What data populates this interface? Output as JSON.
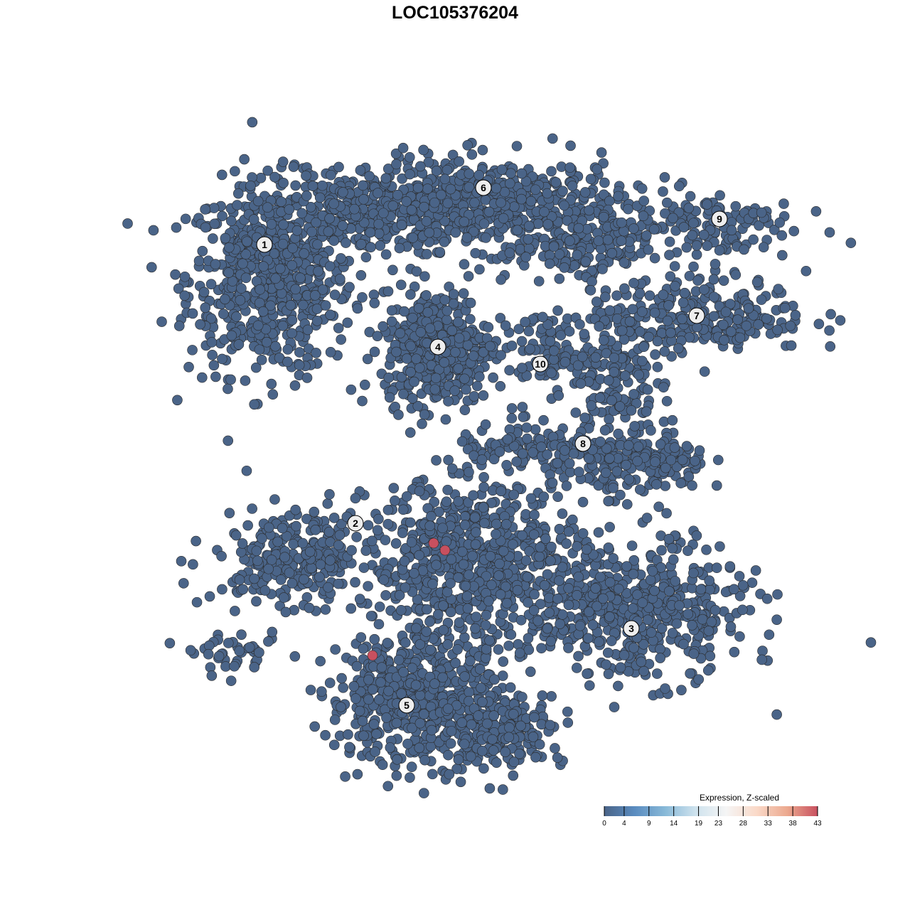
{
  "chart_data": {
    "type": "scatter",
    "title": "LOC105376204",
    "xlabel": "",
    "ylabel": "",
    "axes_visible": false,
    "grid": false,
    "point_color_low": "#4a6488",
    "point_stroke": "#2b2b2b",
    "clusters": [
      {
        "label": "1",
        "label_pos": [
          -6.7,
          7.4
        ],
        "blobs": [
          [
            -6.5,
            6.2,
            1.8,
            2.1,
            650
          ],
          [
            -3.0,
            8.6,
            2.0,
            1.0,
            300
          ]
        ]
      },
      {
        "label": "6",
        "label_pos": [
          1.0,
          9.4
        ],
        "blobs": [
          [
            1.5,
            8.8,
            2.8,
            1.0,
            480
          ],
          [
            4.6,
            7.3,
            1.4,
            0.8,
            150
          ]
        ]
      },
      {
        "label": "4",
        "label_pos": [
          -0.6,
          3.8
        ],
        "blobs": [
          [
            -0.6,
            3.8,
            1.15,
            1.25,
            450
          ]
        ]
      },
      {
        "label": "10",
        "label_pos": [
          3.0,
          3.2
        ],
        "blobs": [
          [
            3.2,
            3.6,
            1.0,
            0.9,
            90
          ]
        ]
      },
      {
        "label": "9",
        "label_pos": [
          9.3,
          8.3
        ],
        "blobs": [
          [
            8.9,
            8.1,
            1.9,
            0.8,
            130
          ]
        ]
      },
      {
        "label": "7",
        "label_pos": [
          8.5,
          4.9
        ],
        "blobs": [
          [
            8.6,
            4.9,
            2.4,
            0.8,
            260
          ],
          [
            5.6,
            2.6,
            0.9,
            1.5,
            150
          ]
        ]
      },
      {
        "label": "8",
        "label_pos": [
          4.5,
          0.4
        ],
        "blobs": [
          [
            6.8,
            -0.3,
            1.3,
            0.7,
            160
          ],
          [
            3.0,
            0.1,
            1.9,
            0.6,
            120
          ]
        ]
      },
      {
        "label": "2",
        "label_pos": [
          -3.5,
          -2.4
        ],
        "blobs": [
          [
            -5.6,
            -3.6,
            1.8,
            1.0,
            260
          ]
        ]
      },
      {
        "label": "3",
        "label_pos": [
          6.2,
          -6.1
        ],
        "blobs": [
          [
            6.4,
            -5.5,
            2.4,
            1.5,
            500
          ]
        ]
      },
      {
        "label": "5",
        "label_pos": [
          -1.7,
          -8.8
        ],
        "blobs": [
          [
            -1.4,
            -8.6,
            1.9,
            1.4,
            550
          ],
          [
            1.6,
            -9.6,
            1.4,
            0.8,
            200
          ],
          [
            0.8,
            -3.8,
            2.4,
            1.9,
            700
          ],
          [
            -7.6,
            -7.0,
            1.0,
            0.4,
            40
          ]
        ]
      }
    ],
    "highlighted_points": [
      {
        "x": -0.75,
        "y": -3.1,
        "value": 43
      },
      {
        "x": -0.35,
        "y": -3.35,
        "value": 43
      },
      {
        "x": -2.9,
        "y": -7.05,
        "value": 43
      }
    ],
    "colorbar": {
      "title": "Expression, Z-scaled",
      "ticks": [
        "0",
        "4",
        "9",
        "14",
        "19",
        "23",
        "28",
        "33",
        "38",
        "43"
      ],
      "range": [
        0,
        43
      ],
      "colors": [
        "#4a6488",
        "#5a8cc0",
        "#88b9d8",
        "#cfe3ee",
        "#f5f5f5",
        "#fad9c8",
        "#eca98f",
        "#c8505f"
      ],
      "placement": "bottom-right"
    }
  }
}
